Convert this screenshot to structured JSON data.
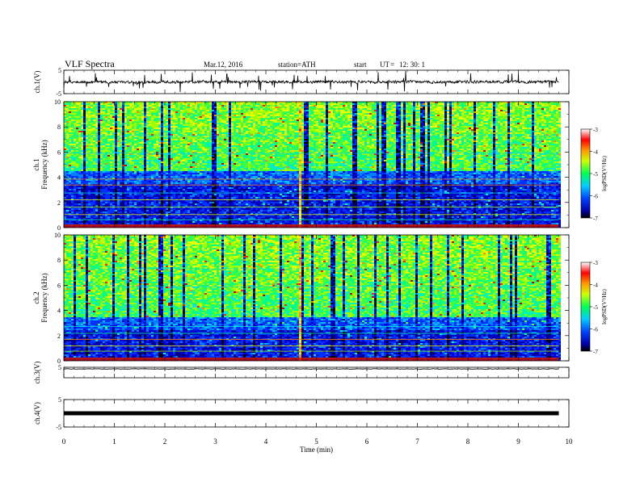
{
  "header": {
    "title": "VLF  Spectra",
    "date": "Mar.12, 2016",
    "station": "station=ATH",
    "start": "start",
    "ut": "UT",
    "eq": "=",
    "time": "12: 30: 1"
  },
  "chart_data": [
    {
      "type": "line",
      "panel": "ch1-waveform",
      "ylabel": "ch.1(V)",
      "ylim": [
        -5,
        5
      ],
      "yticks": [
        5,
        -5
      ],
      "xlim": [
        0,
        10
      ],
      "color": "#000000",
      "series": [
        {
          "x_range": [
            0,
            9.8
          ],
          "baseline": 0,
          "noise": "dense, spiky"
        }
      ]
    },
    {
      "type": "heatmap",
      "panel": "ch1-spectrogram",
      "ylabel": "Frequency  (kHz)",
      "channel_label": "ch.1",
      "ylim": [
        0,
        10
      ],
      "yticks": [
        0,
        2,
        4,
        6,
        8,
        10
      ],
      "xlim": [
        0,
        10
      ],
      "data_xmax": 9.8,
      "colorbar": {
        "label": "logPSD(V²/Hz)",
        "ticks": [
          -3,
          -4,
          -5,
          -6,
          -7
        ],
        "range": [
          -7,
          -3
        ]
      },
      "features": {
        "low_band_kHz": [
          0,
          4.5
        ],
        "high_band_kHz": [
          4.5,
          10
        ],
        "vertical_event_min": 4.65
      }
    },
    {
      "type": "heatmap",
      "panel": "ch2-spectrogram",
      "ylabel": "Frequency  (kHz)",
      "channel_label": "ch.2",
      "ylim": [
        0,
        10
      ],
      "yticks": [
        0,
        2,
        4,
        6,
        8,
        10
      ],
      "xlim": [
        0,
        10
      ],
      "data_xmax": 9.8,
      "colorbar": {
        "label": "logPSD(V²/Hz)",
        "ticks": [
          -3,
          -4,
          -5,
          -6,
          -7
        ],
        "range": [
          -7,
          -3
        ]
      },
      "features": {
        "low_band_kHz": [
          0,
          3.5
        ],
        "high_band_kHz": [
          3.5,
          10
        ],
        "vertical_event_min": 4.65
      }
    },
    {
      "type": "line",
      "panel": "ch3-waveform",
      "ylabel": "ch.3(V)",
      "ylim": [
        -5,
        5
      ],
      "yticks": [
        5
      ],
      "xlim": [
        0,
        10
      ],
      "color": "#000000",
      "series": [
        {
          "x_range": [
            0,
            9.8
          ],
          "baseline": 3.4,
          "noise": "flat"
        }
      ]
    },
    {
      "type": "line",
      "panel": "ch4-waveform",
      "ylabel": "ch.4(V)",
      "ylim": [
        -5,
        5
      ],
      "yticks": [
        5,
        -5
      ],
      "xlim": [
        0,
        10
      ],
      "xlabel": "Time  (min)",
      "xticks": [
        0,
        1,
        2,
        3,
        4,
        5,
        6,
        7,
        8,
        9,
        10
      ],
      "color": "#000000",
      "series": [
        {
          "x_range": [
            0,
            9.8
          ],
          "baseline": 0,
          "noise": "thick band"
        }
      ]
    }
  ]
}
